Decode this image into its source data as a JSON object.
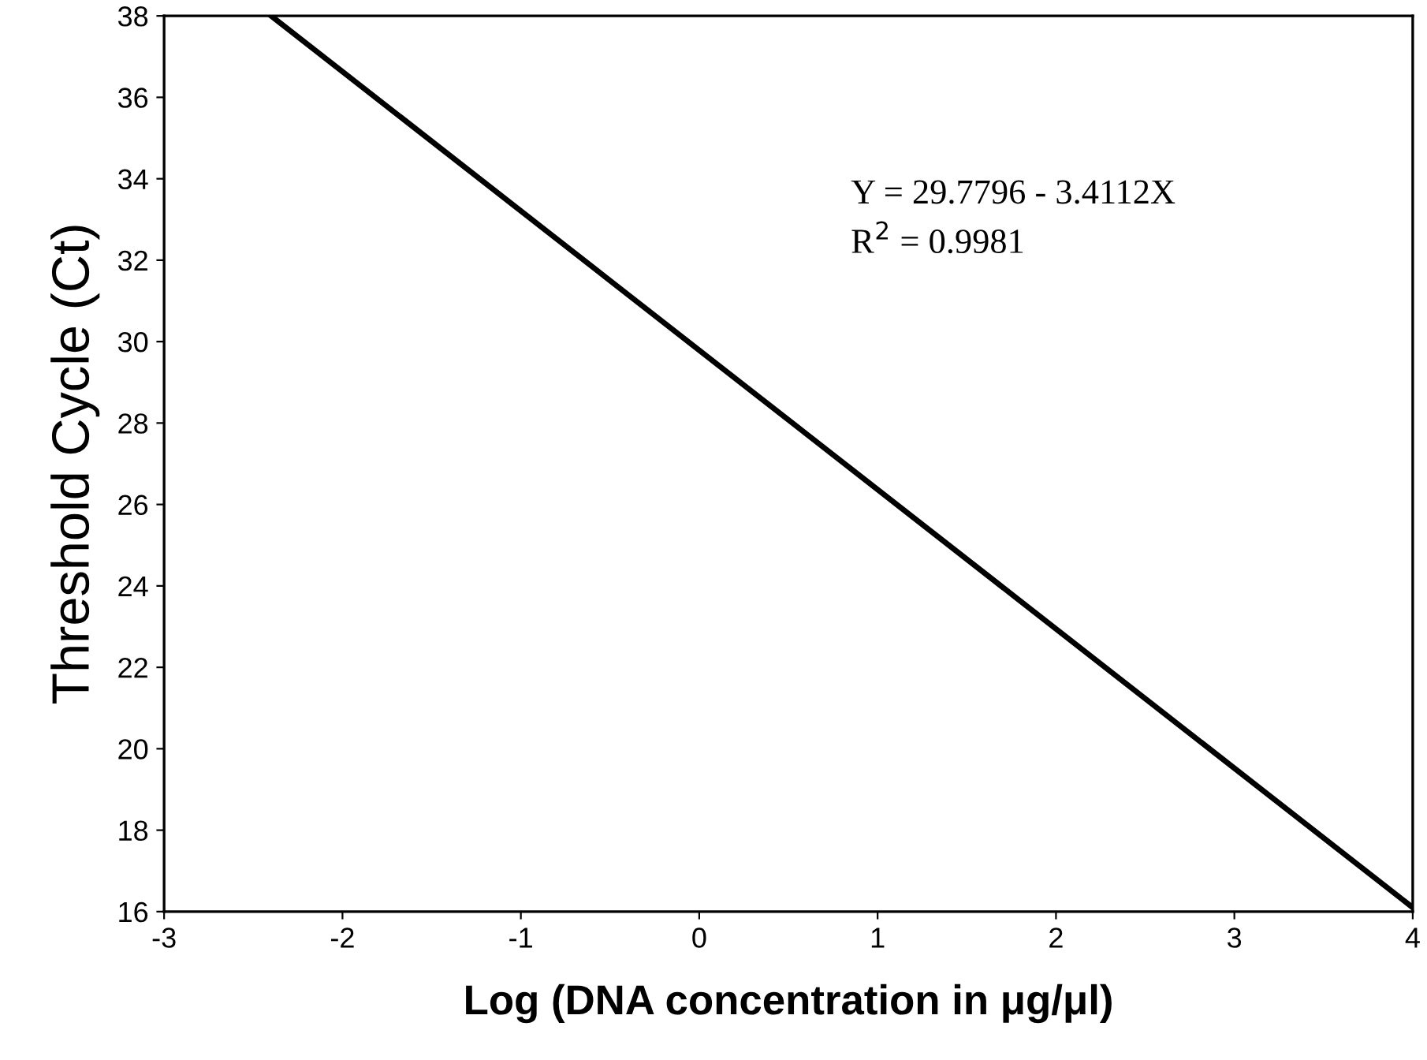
{
  "chart_data": {
    "type": "line",
    "xlabel": "Log (DNA concentration in μg/μl)",
    "ylabel": "Threshold Cycle (Ct)",
    "x": [
      -2.4,
      4
    ],
    "series": [
      {
        "color": "#000000",
        "values": [
          38.0,
          16.1
        ]
      }
    ],
    "xlim": [
      -3,
      4
    ],
    "ylim": [
      16,
      38
    ],
    "xticks": [
      -3,
      -2,
      -1,
      0,
      1,
      2,
      3,
      4
    ],
    "yticks": [
      16,
      18,
      20,
      22,
      24,
      26,
      28,
      30,
      32,
      34,
      36,
      38
    ],
    "grid": false,
    "legend": false,
    "marker": "none",
    "line_style": "solid",
    "annotations": [
      "Y = 29.7796 - 3.4112X",
      "R$^{2}$ = 0.9981"
    ]
  }
}
